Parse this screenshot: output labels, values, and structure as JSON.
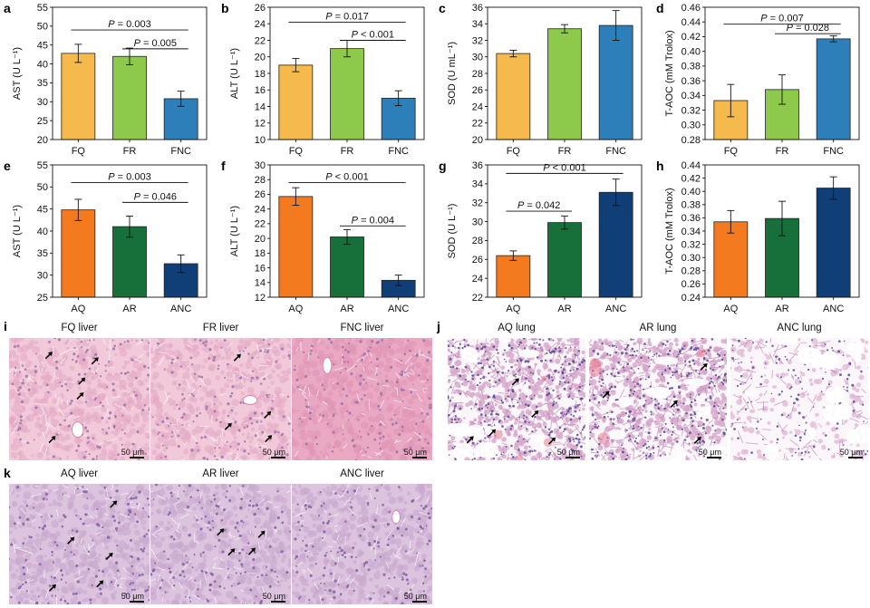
{
  "chart_data": [
    {
      "panel": "a",
      "type": "bar",
      "ylabel": "AST (U L⁻¹)",
      "categories": [
        "FQ",
        "FR",
        "FNC"
      ],
      "values": [
        42.8,
        42.0,
        30.8
      ],
      "errors": [
        2.4,
        2.2,
        2.0
      ],
      "colors": [
        "#F5B94D",
        "#8DC94B",
        "#2D7FBA"
      ],
      "ylim": [
        20,
        55
      ],
      "yticks": [
        20,
        25,
        30,
        35,
        40,
        45,
        50,
        55
      ],
      "significance": [
        {
          "from": 0,
          "to": 2,
          "y": 49.0,
          "label": "= 0.003"
        },
        {
          "from": 1,
          "to": 2,
          "y": 44.0,
          "label": "= 0.005"
        }
      ]
    },
    {
      "panel": "b",
      "type": "bar",
      "ylabel": "ALT (U L⁻¹)",
      "categories": [
        "FQ",
        "FR",
        "FNC"
      ],
      "values": [
        19.0,
        21.0,
        15.0
      ],
      "errors": [
        0.8,
        1.0,
        0.9
      ],
      "colors": [
        "#F5B94D",
        "#8DC94B",
        "#2D7FBA"
      ],
      "ylim": [
        10,
        26
      ],
      "yticks": [
        10,
        12,
        14,
        16,
        18,
        20,
        22,
        24,
        26
      ],
      "significance": [
        {
          "from": 0,
          "to": 2,
          "y": 24.2,
          "label": "= 0.017"
        },
        {
          "from": 1,
          "to": 2,
          "y": 22.0,
          "label": "< 0.001"
        }
      ]
    },
    {
      "panel": "c",
      "type": "bar",
      "ylabel": "SOD (U mL⁻¹)",
      "categories": [
        "FQ",
        "FR",
        "FNC"
      ],
      "values": [
        30.4,
        33.4,
        33.8
      ],
      "errors": [
        0.4,
        0.5,
        1.8
      ],
      "colors": [
        "#F5B94D",
        "#8DC94B",
        "#2D7FBA"
      ],
      "ylim": [
        20,
        36
      ],
      "yticks": [
        20,
        22,
        24,
        26,
        28,
        30,
        32,
        34,
        36
      ],
      "significance": []
    },
    {
      "panel": "d",
      "type": "bar",
      "ylabel": "T-AOC (mM Trolox)",
      "categories": [
        "FQ",
        "FR",
        "FNC"
      ],
      "values": [
        0.333,
        0.348,
        0.417
      ],
      "errors": [
        0.022,
        0.02,
        0.004
      ],
      "colors": [
        "#F5B94D",
        "#8DC94B",
        "#2D7FBA"
      ],
      "ylim": [
        0.28,
        0.46
      ],
      "yticks": [
        0.28,
        0.3,
        0.32,
        0.34,
        0.36,
        0.38,
        0.4,
        0.42,
        0.44,
        0.46
      ],
      "tickDecimals": 2,
      "significance": [
        {
          "from": 0,
          "to": 2,
          "y": 0.437,
          "label": "= 0.007"
        },
        {
          "from": 1,
          "to": 2,
          "y": 0.424,
          "label": "= 0.028"
        }
      ]
    },
    {
      "panel": "e",
      "type": "bar",
      "ylabel": "AST (U L⁻¹)",
      "categories": [
        "AQ",
        "AR",
        "ANC"
      ],
      "values": [
        44.8,
        41.0,
        32.6
      ],
      "errors": [
        2.4,
        2.4,
        2.0
      ],
      "colors": [
        "#F47A20",
        "#17703A",
        "#103F78"
      ],
      "ylim": [
        25,
        55
      ],
      "yticks": [
        25,
        30,
        35,
        40,
        45,
        50,
        55
      ],
      "significance": [
        {
          "from": 0,
          "to": 2,
          "y": 51.0,
          "label": "= 0.003"
        },
        {
          "from": 1,
          "to": 2,
          "y": 46.5,
          "label": "= 0.046"
        }
      ]
    },
    {
      "panel": "f",
      "type": "bar",
      "ylabel": "ALT (U L⁻¹)",
      "categories": [
        "AQ",
        "AR",
        "ANC"
      ],
      "values": [
        25.7,
        20.2,
        14.3
      ],
      "errors": [
        1.2,
        1.0,
        0.7
      ],
      "colors": [
        "#F47A20",
        "#17703A",
        "#103F78"
      ],
      "ylim": [
        12,
        30
      ],
      "yticks": [
        12,
        14,
        16,
        18,
        20,
        22,
        24,
        26,
        28,
        30
      ],
      "significance": [
        {
          "from": 0,
          "to": 2,
          "y": 27.6,
          "label": "< 0.001"
        },
        {
          "from": 1,
          "to": 2,
          "y": 21.7,
          "label": "= 0.004"
        }
      ]
    },
    {
      "panel": "g",
      "type": "bar",
      "ylabel": "SOD (U L⁻¹)",
      "categories": [
        "AQ",
        "AR",
        "ANC"
      ],
      "values": [
        26.4,
        29.9,
        33.1
      ],
      "errors": [
        0.5,
        0.7,
        1.4
      ],
      "colors": [
        "#F47A20",
        "#17703A",
        "#103F78"
      ],
      "ylim": [
        22,
        36
      ],
      "yticks": [
        22,
        24,
        26,
        28,
        30,
        32,
        34,
        36
      ],
      "significance": [
        {
          "from": 0,
          "to": 2,
          "y": 35.1,
          "label": "< 0.001"
        },
        {
          "from": 0,
          "to": 1,
          "y": 31.1,
          "label": "= 0.042"
        }
      ]
    },
    {
      "panel": "h",
      "type": "bar",
      "ylabel": "T-AOC (mM Trolox)",
      "categories": [
        "AQ",
        "AR",
        "ANC"
      ],
      "values": [
        0.354,
        0.359,
        0.405
      ],
      "errors": [
        0.017,
        0.026,
        0.017
      ],
      "colors": [
        "#F47A20",
        "#17703A",
        "#103F78"
      ],
      "ylim": [
        0.24,
        0.44
      ],
      "yticks": [
        0.24,
        0.26,
        0.28,
        0.3,
        0.32,
        0.34,
        0.36,
        0.38,
        0.4,
        0.42,
        0.44
      ],
      "tickDecimals": 2,
      "significance": []
    }
  ],
  "p_symbol": "P",
  "micrographs": {
    "i": {
      "letter": "i",
      "tissue": "liver",
      "titles": [
        "FQ liver",
        "FR liver",
        "FNC liver"
      ],
      "scale": [
        "50 μm",
        "50 μm",
        "50 μm"
      ]
    },
    "j": {
      "letter": "j",
      "tissue": "lung",
      "titles": [
        "AQ lung",
        "AR lung",
        "ANC lung"
      ],
      "scale": [
        "50 μm",
        "50 μm",
        "50 μm"
      ]
    },
    "k": {
      "letter": "k",
      "tissue": "liver",
      "titles": [
        "AQ liver",
        "AR liver",
        "ANC liver"
      ],
      "scale": [
        "50 μm",
        "50 μm",
        "50 μm"
      ]
    }
  }
}
